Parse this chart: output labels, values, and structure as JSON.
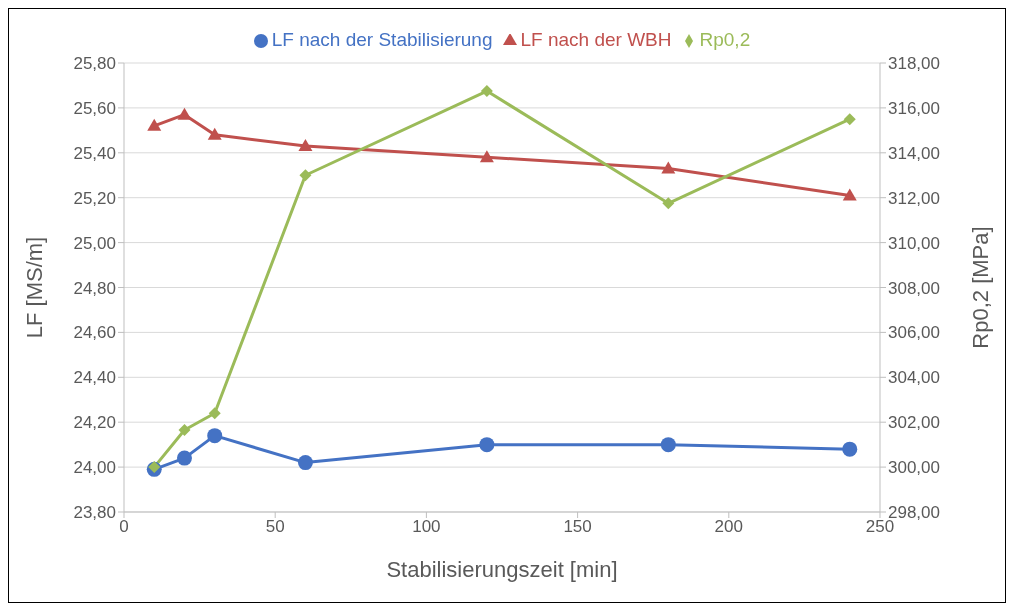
{
  "chart_data": {
    "type": "line",
    "xlabel": "Stabilisierungszeit [min]",
    "ylabel": "LF [MS/m]",
    "y2label": "Rp0,2 [MPa]",
    "xlim": [
      0,
      250
    ],
    "xticks": [
      0,
      50,
      100,
      150,
      200,
      250
    ],
    "ylim": [
      23.8,
      25.8
    ],
    "yticks": [
      {
        "value": 23.8,
        "label": "23,80"
      },
      {
        "value": 24.0,
        "label": "24,00"
      },
      {
        "value": 24.2,
        "label": "24,20"
      },
      {
        "value": 24.4,
        "label": "24,40"
      },
      {
        "value": 24.6,
        "label": "24,60"
      },
      {
        "value": 24.8,
        "label": "24,80"
      },
      {
        "value": 25.0,
        "label": "25,00"
      },
      {
        "value": 25.2,
        "label": "25,20"
      },
      {
        "value": 25.4,
        "label": "25,40"
      },
      {
        "value": 25.6,
        "label": "25,60"
      },
      {
        "value": 25.8,
        "label": "25,80"
      }
    ],
    "y2lim": [
      298,
      318
    ],
    "y2ticks": [
      {
        "value": 298,
        "label": "298,00"
      },
      {
        "value": 300,
        "label": "300,00"
      },
      {
        "value": 302,
        "label": "302,00"
      },
      {
        "value": 304,
        "label": "304,00"
      },
      {
        "value": 306,
        "label": "306,00"
      },
      {
        "value": 308,
        "label": "308,00"
      },
      {
        "value": 310,
        "label": "310,00"
      },
      {
        "value": 312,
        "label": "312,00"
      },
      {
        "value": 314,
        "label": "314,00"
      },
      {
        "value": 316,
        "label": "316,00"
      },
      {
        "value": 318,
        "label": "318,00"
      }
    ],
    "x": [
      10,
      20,
      30,
      60,
      120,
      180,
      240
    ],
    "series": [
      {
        "name": "LF nach der Stabilisierung",
        "color": "#4472c4",
        "marker": "circle",
        "values": [
          23.99,
          24.04,
          24.14,
          24.02,
          24.1,
          24.1,
          24.08
        ]
      },
      {
        "name": "LF nach der WBH",
        "color": "#c0504d",
        "marker": "triangle",
        "values": [
          25.52,
          25.57,
          25.48,
          25.43,
          25.38,
          25.33,
          25.21
        ]
      },
      {
        "name": "Rp0,2",
        "color": "#9bbb59",
        "marker": "diamond",
        "axis": "y2",
        "values": [
          300.0,
          301.65,
          302.4,
          313.0,
          316.75,
          311.75,
          315.5
        ]
      }
    ],
    "grid": "y",
    "legend": "top",
    "line_style": "solid"
  }
}
